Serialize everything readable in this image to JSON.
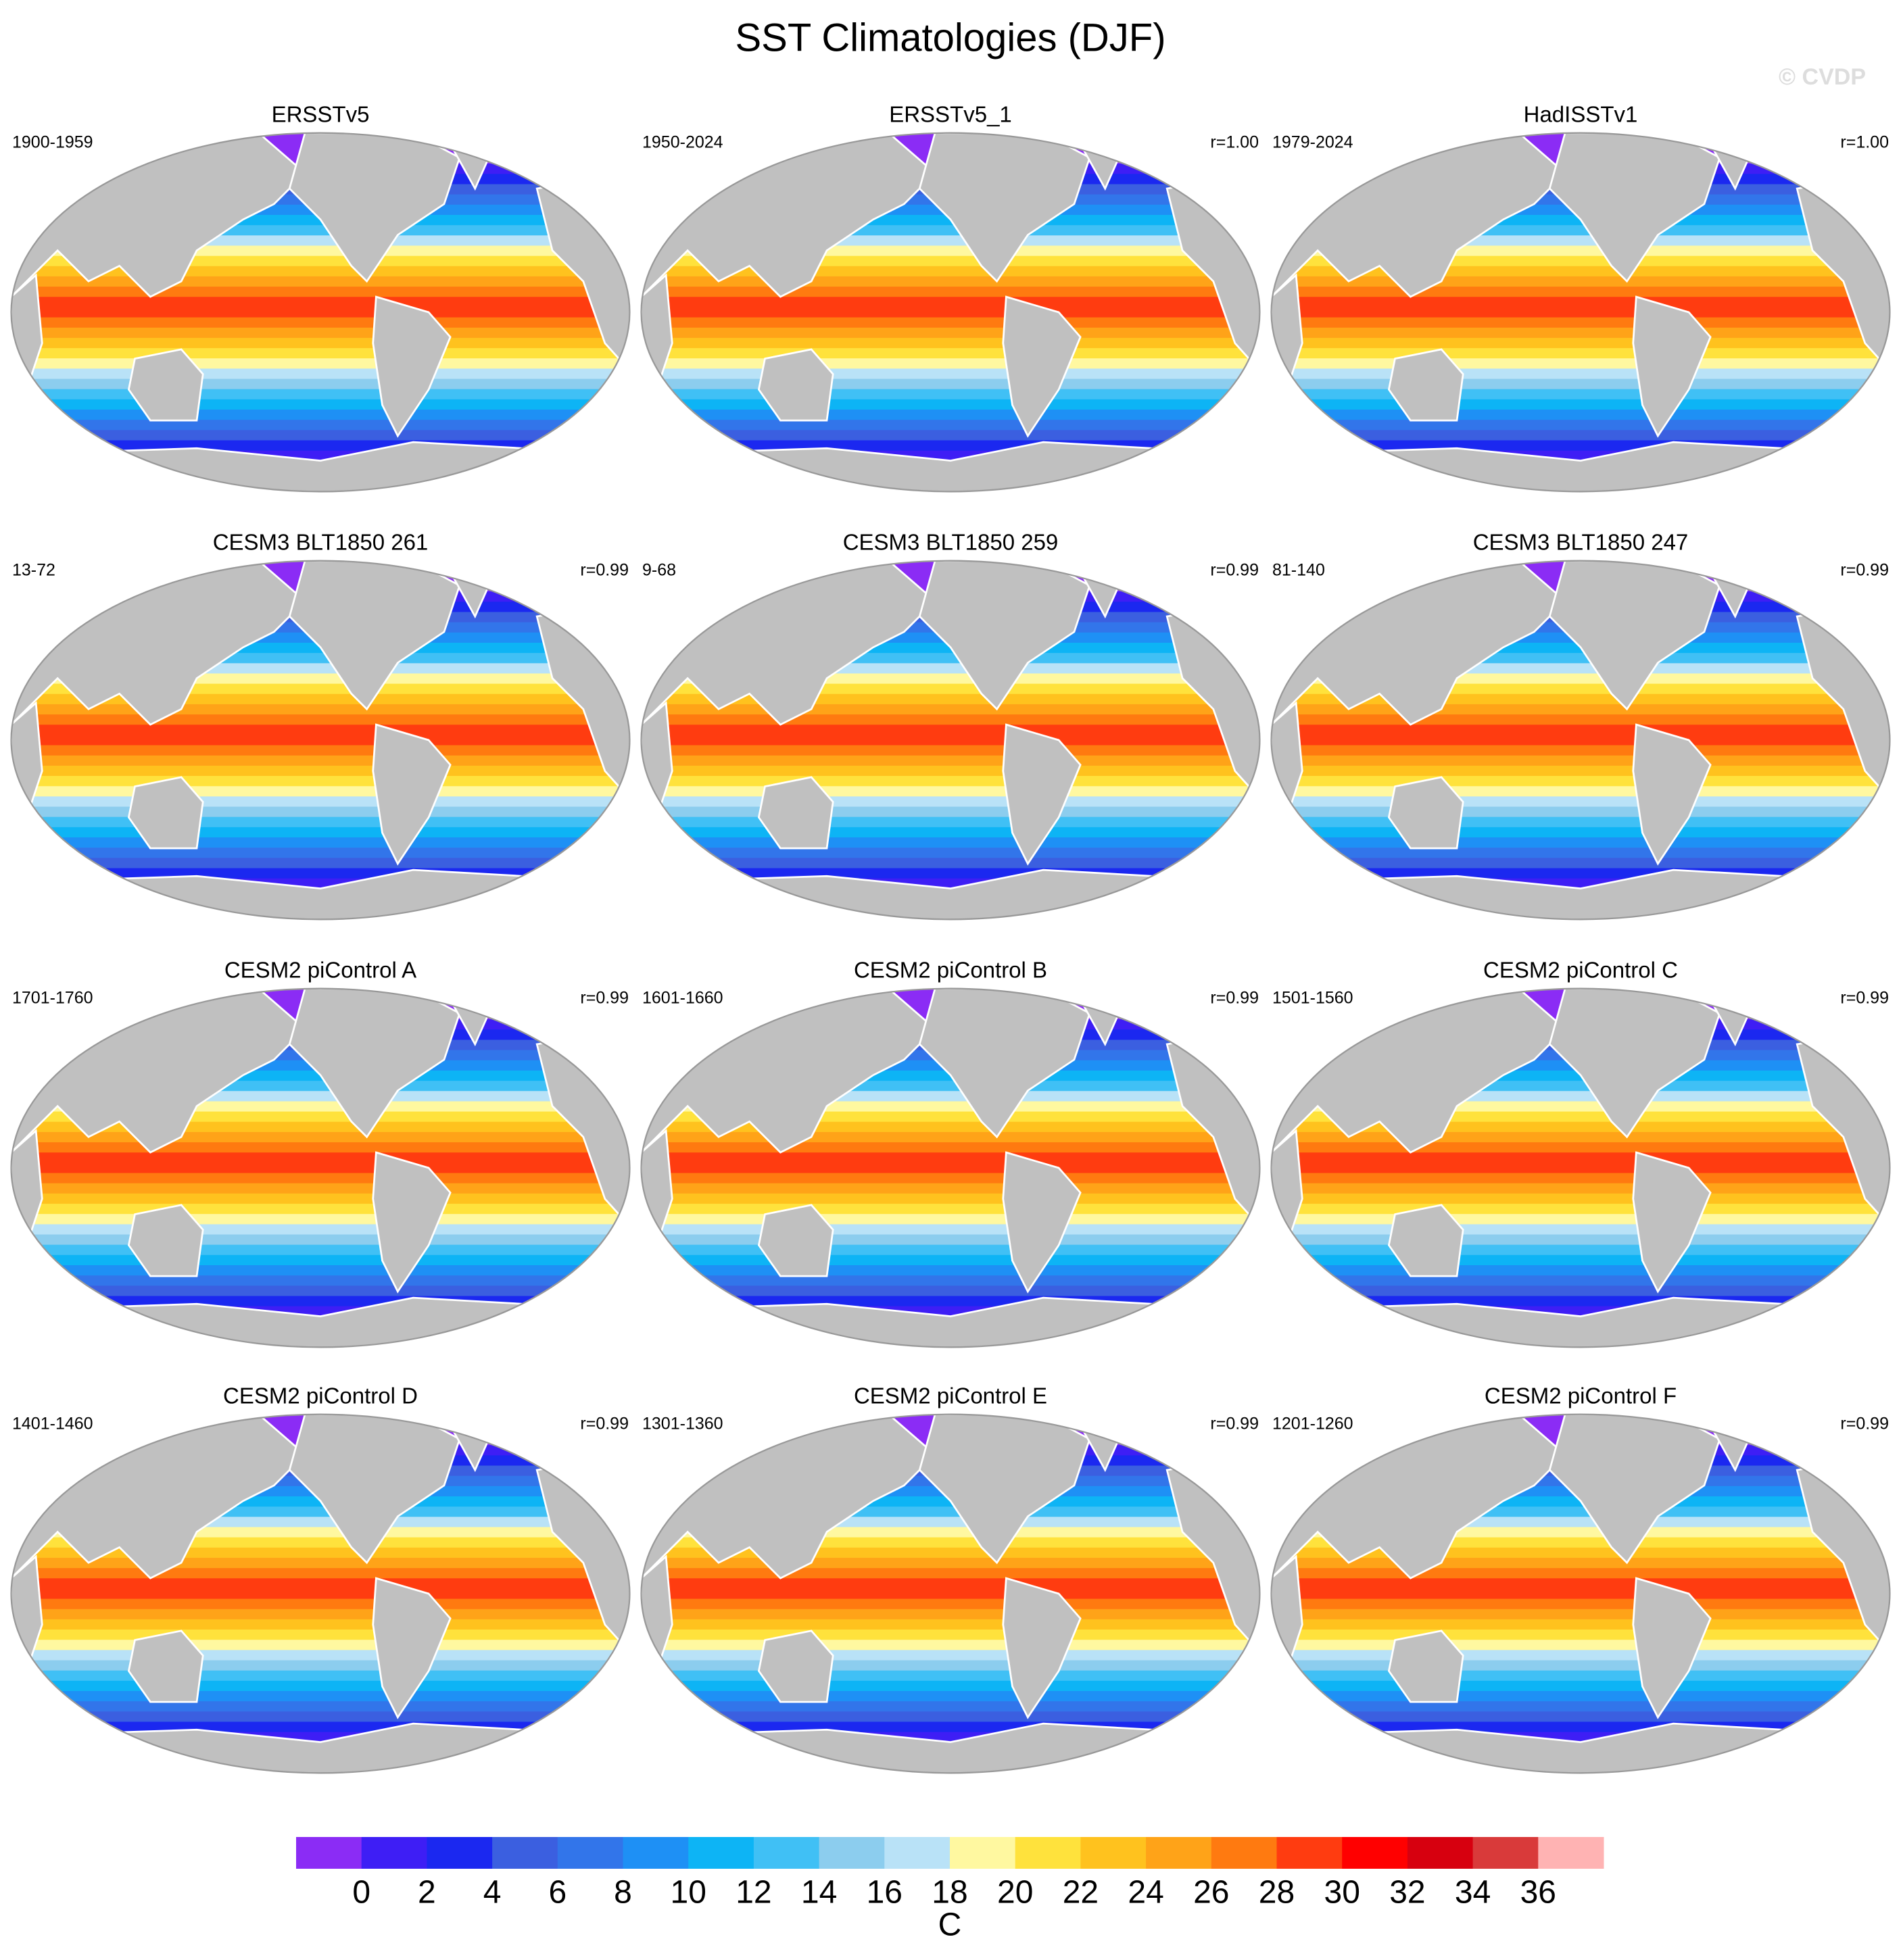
{
  "title": "SST Climatologies (DJF)",
  "copyright": "© CVDP",
  "panels": [
    {
      "title": "ERSSTv5",
      "period": "1900-1959"
    },
    {
      "title": "ERSSTv5_1",
      "period": "1950-2024",
      "r": "r=1.00"
    },
    {
      "title": "HadISSTv1",
      "period": "1979-2024",
      "r": "r=1.00"
    },
    {
      "title": "CESM3 BLT1850 261",
      "period": "13-72",
      "r": "r=0.99"
    },
    {
      "title": "CESM3 BLT1850 259",
      "period": "9-68",
      "r": "r=0.99"
    },
    {
      "title": "CESM3 BLT1850 247",
      "period": "81-140",
      "r": "r=0.99"
    },
    {
      "title": "CESM2 piControl A",
      "period": "1701-1760",
      "r": "r=0.99"
    },
    {
      "title": "CESM2 piControl B",
      "period": "1601-1660",
      "r": "r=0.99"
    },
    {
      "title": "CESM2 piControl C",
      "period": "1501-1560",
      "r": "r=0.99"
    },
    {
      "title": "CESM2 piControl D",
      "period": "1401-1460",
      "r": "r=0.99"
    },
    {
      "title": "CESM2 piControl E",
      "period": "1301-1360",
      "r": "r=0.99"
    },
    {
      "title": "CESM2 piControl F",
      "period": "1201-1260",
      "r": "r=0.99"
    }
  ],
  "colorbar": {
    "ticks": [
      0,
      2,
      4,
      6,
      8,
      10,
      12,
      14,
      16,
      18,
      20,
      22,
      24,
      26,
      28,
      30,
      32,
      34,
      36
    ],
    "colors": [
      "#8b2cf5",
      "#3e1ef5",
      "#1b28f0",
      "#3b5fe0",
      "#3275ea",
      "#1e90f5",
      "#0db4f5",
      "#40c0f5",
      "#8ccdee",
      "#b9e2f7",
      "#fff8a0",
      "#ffe23c",
      "#ffc21e",
      "#ffa318",
      "#ff7a10",
      "#ff3c10",
      "#ff0000",
      "#d7000f",
      "#d93a3a",
      "#ffb3b3"
    ],
    "unit": "C"
  }
}
